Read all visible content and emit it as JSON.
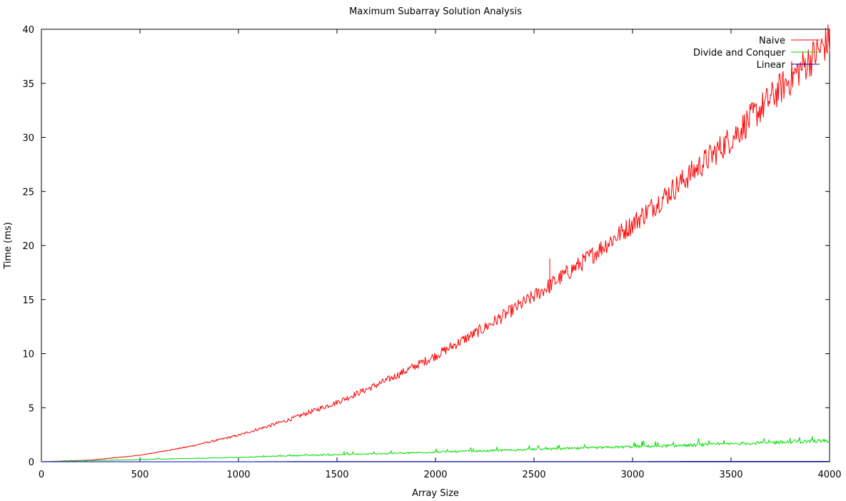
{
  "chart_data": {
    "type": "line",
    "title": "Maximum Subarray Solution Analysis",
    "xlabel": "Array Size",
    "ylabel": "Time (ms)",
    "xlim": [
      0,
      4000
    ],
    "ylim": [
      0,
      40
    ],
    "xticks": [
      0,
      500,
      1000,
      1500,
      2000,
      2500,
      3000,
      3500,
      4000
    ],
    "yticks": [
      0,
      5,
      10,
      15,
      20,
      25,
      30,
      35,
      40
    ],
    "legend_position": "top-right",
    "grid": false,
    "x": [
      0,
      250,
      500,
      750,
      1000,
      1250,
      1500,
      1750,
      2000,
      2250,
      2500,
      2750,
      3000,
      3250,
      3500,
      3750,
      4000
    ],
    "series": [
      {
        "name": "Naive",
        "color": "#ff0000",
        "values": [
          0,
          0.15,
          0.6,
          1.4,
          2.45,
          3.85,
          5.5,
          7.5,
          9.8,
          12.4,
          15.3,
          18.5,
          22.0,
          25.9,
          29.9,
          34.5,
          39.0
        ]
      },
      {
        "name": "Divide and Conquer",
        "color": "#00dd00",
        "values": [
          0,
          0.1,
          0.2,
          0.3,
          0.4,
          0.55,
          0.65,
          0.75,
          0.9,
          1.0,
          1.15,
          1.25,
          1.4,
          1.5,
          1.65,
          1.8,
          1.95
        ]
      },
      {
        "name": "Linear",
        "color": "#0000cc",
        "values": [
          0,
          0,
          0,
          0,
          0,
          0.01,
          0.01,
          0.01,
          0.01,
          0.02,
          0.02,
          0.02,
          0.02,
          0.03,
          0.03,
          0.03,
          0.03
        ]
      }
    ],
    "annotations": [
      {
        "series": "Naive",
        "x": 2580,
        "y": 18.8,
        "note": "spike"
      }
    ]
  }
}
